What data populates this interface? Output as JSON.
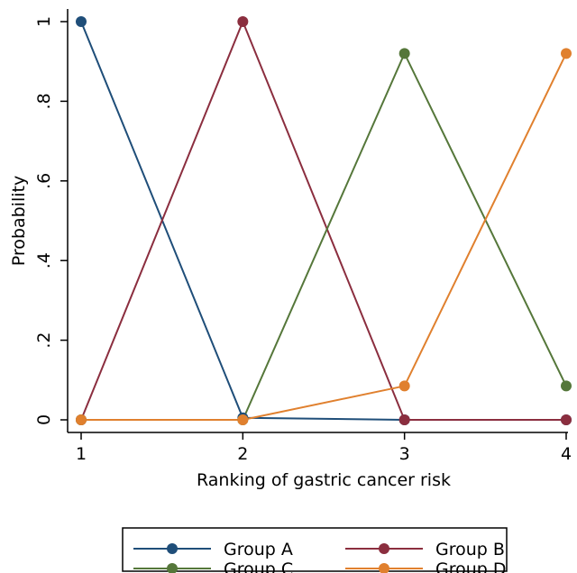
{
  "chart_data": {
    "type": "line",
    "title": "",
    "xlabel": "Ranking of gastric cancer risk",
    "ylabel": "Probability",
    "x": [
      1,
      2,
      3,
      4
    ],
    "xticks": [
      "1",
      "2",
      "3",
      "4"
    ],
    "yticks": [
      {
        "value": 0,
        "label": "0"
      },
      {
        "value": 0.2,
        "label": ".2"
      },
      {
        "value": 0.4,
        "label": ".4"
      },
      {
        "value": 0.6,
        "label": ".6"
      },
      {
        "value": 0.8,
        "label": ".8"
      },
      {
        "value": 1,
        "label": "1"
      }
    ],
    "xlim": [
      1,
      4
    ],
    "ylim": [
      0,
      1
    ],
    "grid": false,
    "legend_position": "bottom",
    "series": [
      {
        "name": "Group A",
        "color": "#1f4e79",
        "values": [
          1.0,
          0.005,
          0.0,
          0.0
        ]
      },
      {
        "name": "Group B",
        "color": "#8b2e3f",
        "values": [
          0.0,
          1.0,
          0.0,
          0.0
        ]
      },
      {
        "name": "Group C",
        "color": "#55773a",
        "values": [
          0.0,
          0.0,
          0.92,
          0.085
        ]
      },
      {
        "name": "Group D",
        "color": "#e0802e",
        "values": [
          0.0,
          0.0,
          0.085,
          0.92
        ]
      }
    ]
  }
}
